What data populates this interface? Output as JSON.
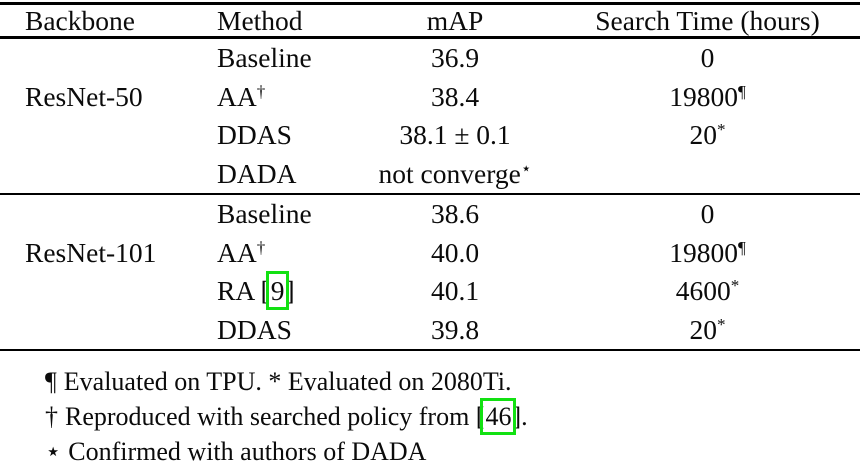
{
  "colors": {
    "link_box": "#12e112",
    "rule": "#000000",
    "text": "#0b0b0b",
    "background": "#ffffff"
  },
  "table": {
    "headers": [
      "Backbone",
      "Method",
      "mAP",
      "Search Time (hours)"
    ],
    "groups": [
      {
        "backbone": "ResNet-50",
        "rows": [
          {
            "method": "Baseline",
            "map": "36.9",
            "search": "0"
          },
          {
            "method": "AA",
            "method_sup": "†",
            "map": "38.4",
            "search": "19800",
            "search_sup": "¶"
          },
          {
            "method": "DDAS",
            "map": "38.1 ± 0.1",
            "search": "20",
            "search_sup": "*"
          },
          {
            "method": "DADA",
            "map": "not converge",
            "map_sup": "⋆",
            "search": ""
          }
        ]
      },
      {
        "backbone": "ResNet-101",
        "rows": [
          {
            "method": "Baseline",
            "map": "38.6",
            "search": "0"
          },
          {
            "method": "AA",
            "method_sup": "†",
            "map": "40.0",
            "search": "19800",
            "search_sup": "¶"
          },
          {
            "method_pre": "RA [",
            "cite": "9",
            "method_post": "]",
            "map": "40.1",
            "search": "4600",
            "search_sup": "*"
          },
          {
            "method": "DDAS",
            "map": "39.8",
            "search": "20",
            "search_sup": "*"
          }
        ]
      }
    ]
  },
  "footnotes": [
    {
      "marker": "¶",
      "text": "Evaluated on TPU. * Evaluated on 2080Ti."
    },
    {
      "marker": "†",
      "text_pre": "Reproduced with searched policy from [",
      "cite": "46",
      "text_post": "]."
    },
    {
      "marker": "⋆",
      "text": "Confirmed with authors of DADA"
    }
  ]
}
